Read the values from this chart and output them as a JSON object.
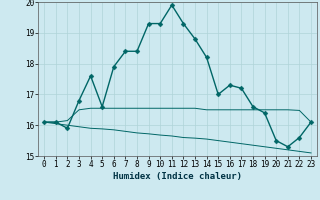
{
  "xlabel": "Humidex (Indice chaleur)",
  "background_color": "#cde9f0",
  "grid_color": "#b0d4d8",
  "line_color": "#006666",
  "x_values": [
    0,
    1,
    2,
    3,
    4,
    5,
    6,
    7,
    8,
    9,
    10,
    11,
    12,
    13,
    14,
    15,
    16,
    17,
    18,
    19,
    20,
    21,
    22,
    23
  ],
  "main_line": [
    16.1,
    16.1,
    15.9,
    16.8,
    17.6,
    16.6,
    17.9,
    18.4,
    18.4,
    19.3,
    19.3,
    19.9,
    19.3,
    18.8,
    18.2,
    17.0,
    17.3,
    17.2,
    16.6,
    16.4,
    15.5,
    15.3,
    15.6,
    16.1
  ],
  "upper_line": [
    16.1,
    16.1,
    16.15,
    16.5,
    16.55,
    16.55,
    16.55,
    16.55,
    16.55,
    16.55,
    16.55,
    16.55,
    16.55,
    16.55,
    16.5,
    16.5,
    16.5,
    16.5,
    16.5,
    16.5,
    16.5,
    16.5,
    16.48,
    16.1
  ],
  "lower_line": [
    16.1,
    16.05,
    16.0,
    15.95,
    15.9,
    15.88,
    15.85,
    15.8,
    15.75,
    15.72,
    15.68,
    15.65,
    15.6,
    15.58,
    15.55,
    15.5,
    15.45,
    15.4,
    15.35,
    15.3,
    15.25,
    15.2,
    15.15,
    15.1
  ],
  "ylim": [
    15,
    20
  ],
  "xlim": [
    -0.5,
    23.5
  ],
  "yticks": [
    15,
    16,
    17,
    18,
    19,
    20
  ],
  "xticks": [
    0,
    1,
    2,
    3,
    4,
    5,
    6,
    7,
    8,
    9,
    10,
    11,
    12,
    13,
    14,
    15,
    16,
    17,
    18,
    19,
    20,
    21,
    22,
    23
  ],
  "marker": "D",
  "marker_size": 2.5,
  "linewidth": 1.0,
  "tick_fontsize": 5.5,
  "xlabel_fontsize": 6.5
}
